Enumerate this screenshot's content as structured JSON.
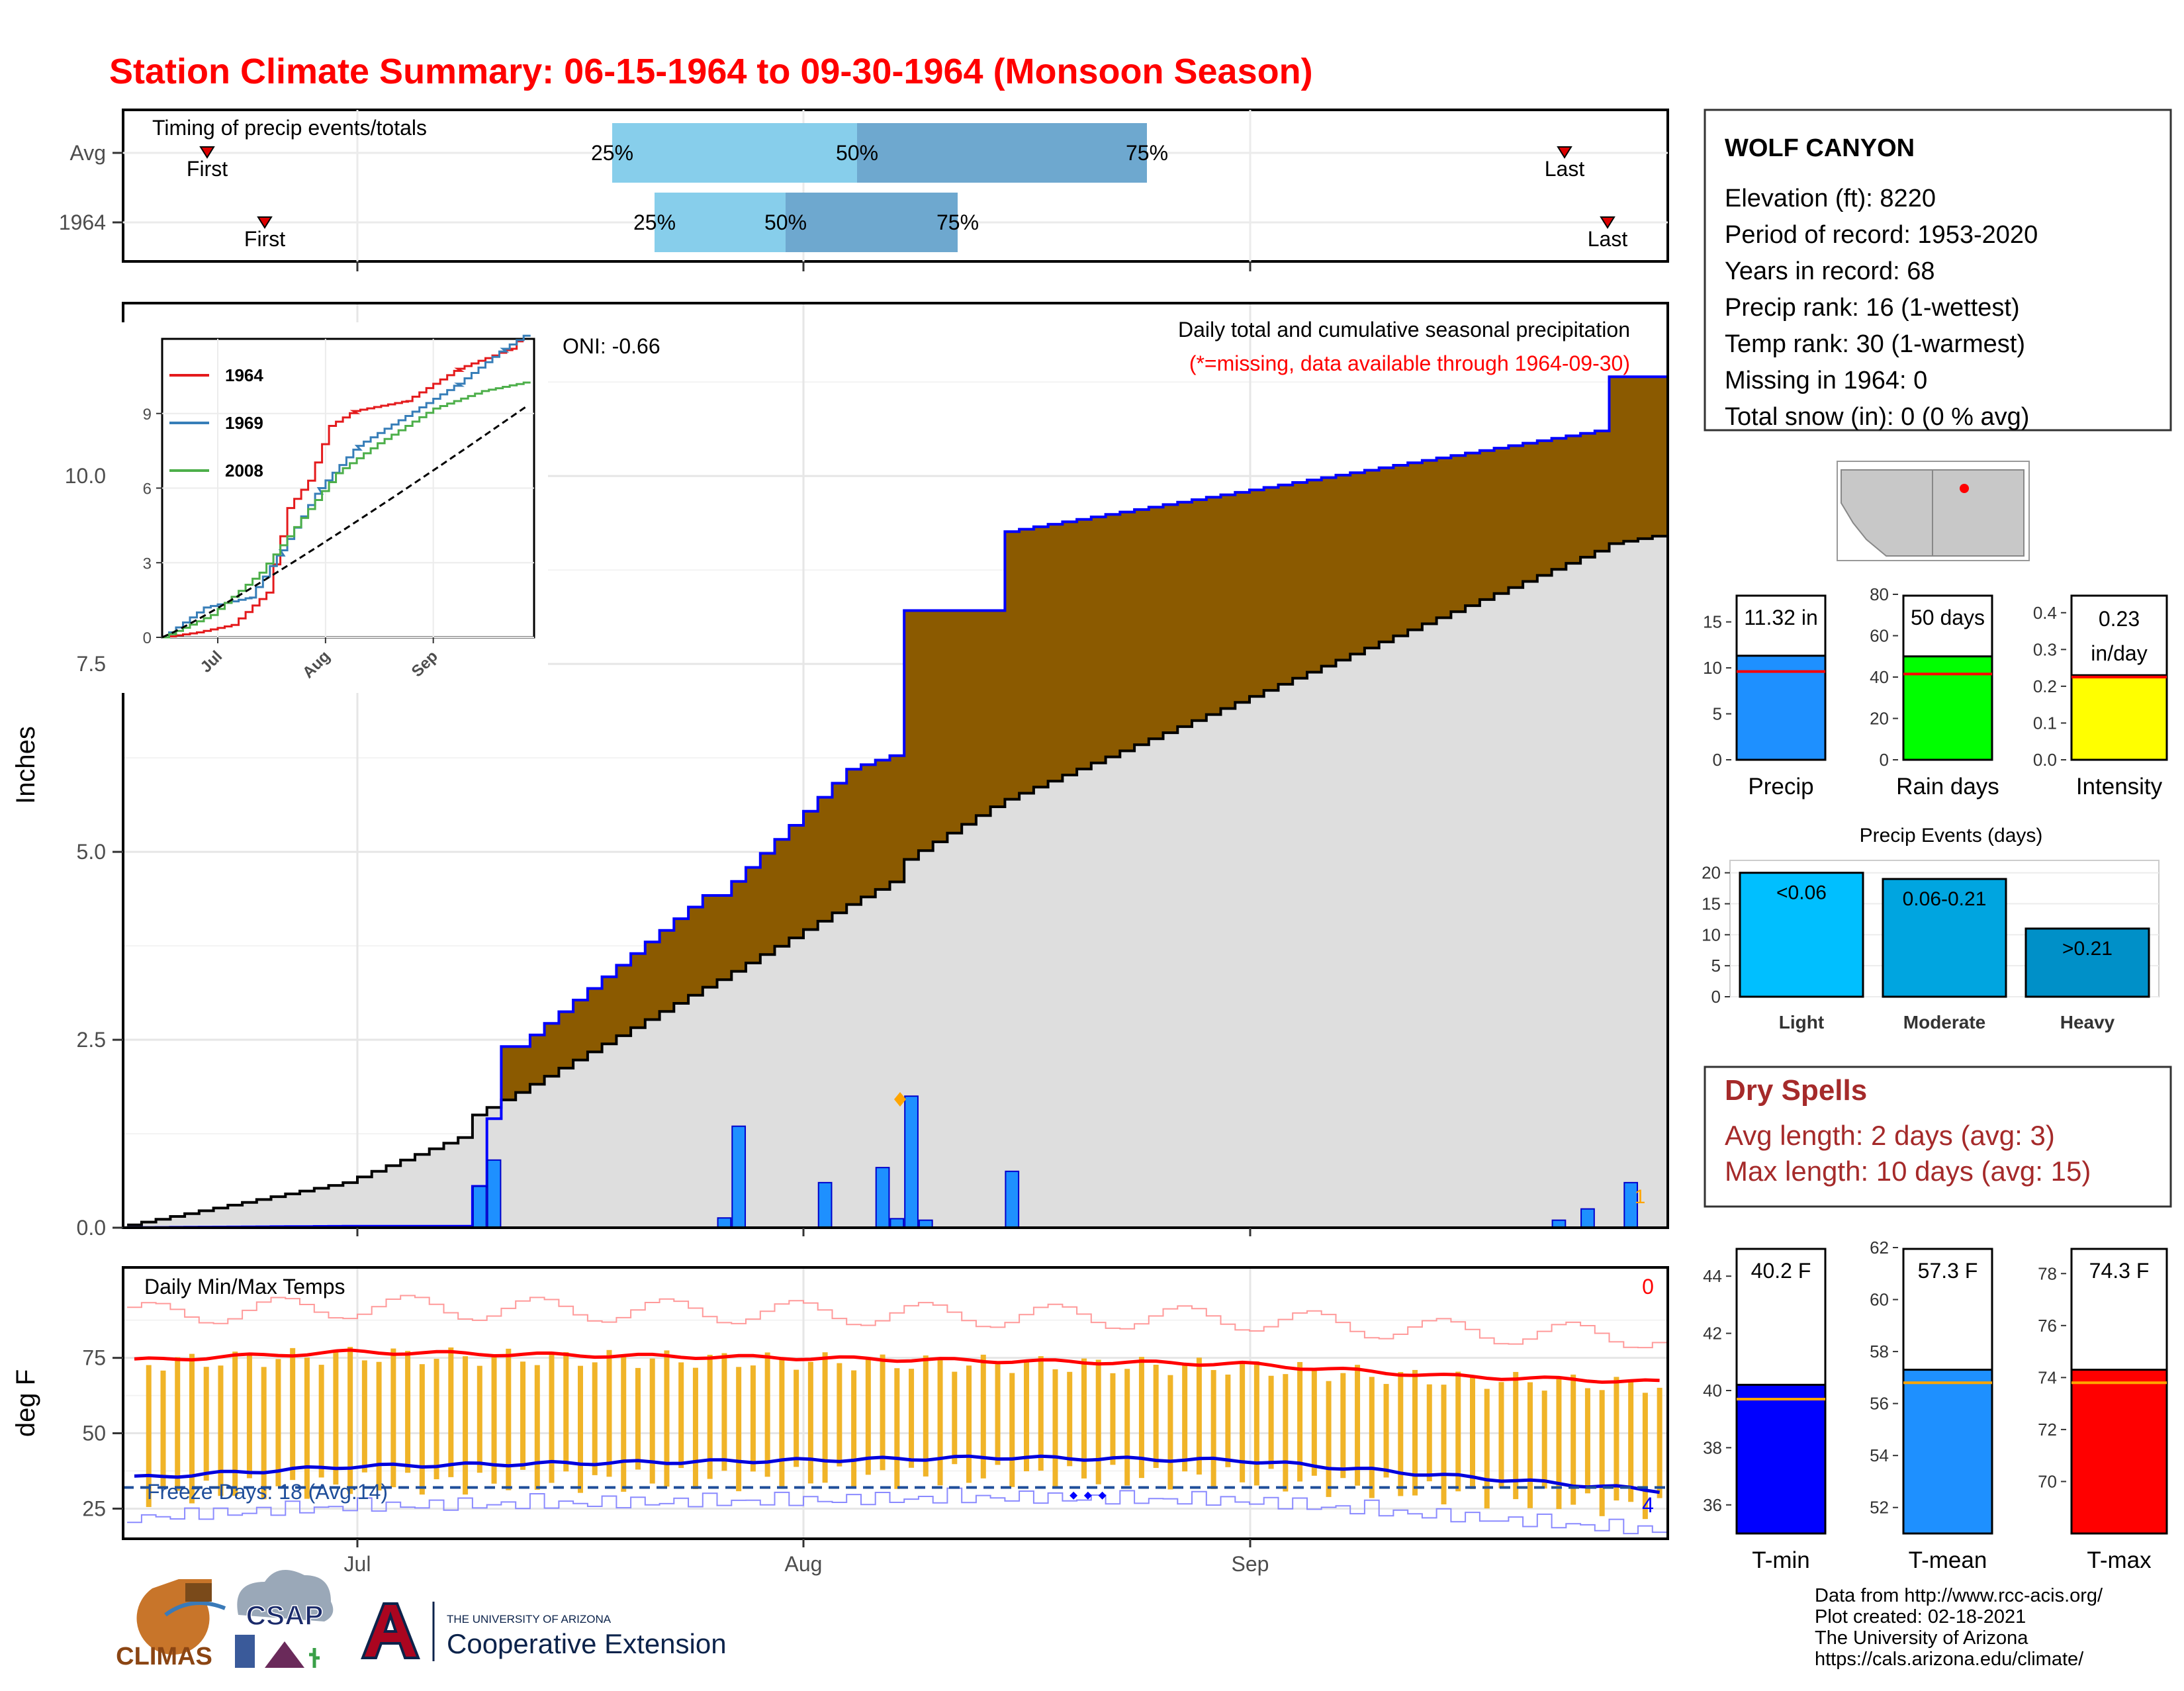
{
  "title": "Station Climate Summary: 06-15-1964 to 09-30-1964 (Monsoon Season)",
  "station": {
    "name": "WOLF CANYON",
    "lines": [
      "Elevation (ft): 8220",
      "Period of record: 1953-2020",
      "Years in record: 68",
      "Precip rank: 16 (1-wettest)",
      "Temp rank: 30 (1-warmest)",
      "Missing in 1964: 0",
      "Total snow (in): 0 (0 % avg)"
    ]
  },
  "timing": {
    "title": "Timing of precip events/totals",
    "rows": [
      "Avg",
      "1964"
    ],
    "first_label": "First",
    "last_label": "Last",
    "pct_labels": [
      "25%",
      "50%",
      "75%"
    ]
  },
  "main": {
    "ylabel": "Inches",
    "annot_title": "Daily total and cumulative seasonal precipitation",
    "annot_missing": "(*=missing, data available through 1964-09-30)",
    "oni": "ONI: -0.66",
    "corner_count": "1",
    "inset_legend": [
      "1964",
      "1969",
      "2008"
    ]
  },
  "temps": {
    "title": "Daily Min/Max Temps",
    "ylabel": "deg F",
    "freeze_label": "Freeze Days: 18 (Avg:14)",
    "top_right_count": "0",
    "bottom_right_count": "4"
  },
  "x_axis": {
    "ticks": [
      "Jul",
      "Aug",
      "Sep"
    ]
  },
  "summary_bars": [
    {
      "label": "Precip",
      "value_label": "11.32 in",
      "value": 11.32,
      "avg": 9.6,
      "ylim": [
        0,
        18
      ],
      "ticks": [
        "0",
        "5",
        "10",
        "15"
      ],
      "color": "#1e90ff"
    },
    {
      "label": "Rain days",
      "value_label": "50 days",
      "value": 50,
      "avg": 41.5,
      "ylim": [
        0,
        80
      ],
      "ticks": [
        "0",
        "20",
        "40",
        "60",
        "80"
      ],
      "color": "#00ff00"
    },
    {
      "label": "Intensity",
      "value_label": "0.23 in/day",
      "value_line1": "0.23",
      "value_line2": "in/day",
      "value": 0.23,
      "avg": 0.225,
      "ylim": [
        0,
        0.45
      ],
      "ticks": [
        "0.0",
        "0.1",
        "0.2",
        "0.3",
        "0.4"
      ],
      "color": "#ffff00"
    }
  ],
  "precip_events": {
    "title": "Precip Events (days)",
    "categories": [
      "Light",
      "Moderate",
      "Heavy"
    ],
    "labels": [
      "<0.06",
      "0.06-0.21",
      ">0.21"
    ],
    "values": [
      20,
      19,
      11
    ],
    "ticks": [
      "0",
      "5",
      "10",
      "15",
      "20"
    ],
    "colors": [
      "#00bfff",
      "#00a5e0",
      "#0090c8"
    ]
  },
  "dry_spells": {
    "title": "Dry Spells",
    "avg_line": "Avg length: 2 days (avg: 3)",
    "max_line": "Max length: 10 days (avg: 15)"
  },
  "temp_bars": [
    {
      "label": "T-min",
      "value_label": "40.2 F",
      "value": 40.2,
      "avg": 39.7,
      "ylim": [
        35,
        45
      ],
      "ticks": [
        "36",
        "38",
        "40",
        "42",
        "44"
      ],
      "color": "#0000ff"
    },
    {
      "label": "T-mean",
      "value_label": "57.3 F",
      "value": 57.3,
      "avg": 56.8,
      "ylim": [
        51,
        62
      ],
      "ticks": [
        "52",
        "54",
        "56",
        "58",
        "60",
        "62"
      ],
      "color": "#1e90ff"
    },
    {
      "label": "T-max",
      "value_label": "74.3 F",
      "value": 74.3,
      "avg": 73.8,
      "ylim": [
        68,
        79
      ],
      "ticks": [
        "70",
        "72",
        "74",
        "76",
        "78"
      ],
      "color": "#ff0000"
    }
  ],
  "credits": [
    "Data from http://www.rcc-acis.org/",
    "Plot created: 02-18-2021",
    "The University of Arizona",
    "https://cals.arizona.edu/climate/"
  ],
  "logos": {
    "climas": "CLIMAS",
    "csap": "CSAP",
    "ua_small": "THE UNIVERSITY OF ARIZONA",
    "ua_big": "Cooperative Extension"
  },
  "chart_data": [
    {
      "type": "area",
      "title": "Daily total and cumulative seasonal precipitation",
      "ylabel": "Inches",
      "ylim": [
        0,
        12.3
      ],
      "x": [
        "06-15",
        "07-01",
        "07-09",
        "07-10",
        "07-11",
        "07-12",
        "07-13",
        "07-26",
        "07-27",
        "08-05",
        "08-08",
        "08-09",
        "08-15",
        "08-16",
        "09-26",
        "09-27",
        "09-30"
      ],
      "series": [
        {
          "name": "1964",
          "values": [
            0,
            0.02,
            0.02,
            0.55,
            1.45,
            2.41,
            2.41,
            4.42,
            4.42,
            6.1,
            6.28,
            8.21,
            8.21,
            9.26,
            10.6,
            11.32,
            11.32
          ]
        },
        {
          "values": [
            0,
            0.6,
            1.2,
            1.5,
            1.6,
            1.7,
            1.8,
            3.2,
            3.3,
            4.3,
            4.6,
            4.9,
            5.6,
            5.7,
            9.0,
            9.1,
            9.2
          ]
        }
      ],
      "daily": {
        "x": [
          "07-10",
          "07-11",
          "07-27",
          "07-28",
          "08-03",
          "08-07",
          "08-08",
          "08-09",
          "08-10",
          "08-16",
          "09-23",
          "09-25",
          "09-28"
        ],
        "values": [
          0.55,
          0.9,
          0.13,
          1.35,
          0.6,
          0.8,
          0.12,
          1.75,
          0.1,
          0.75,
          0.1,
          0.25,
          0.6
        ]
      }
    },
    {
      "type": "line",
      "title": "Daily Min/Max Temps",
      "ylabel": "deg F",
      "ylim": [
        15,
        105
      ],
      "x": [
        "06-15",
        "07-01",
        "07-15",
        "08-01",
        "08-15",
        "09-01",
        "09-15",
        "09-30"
      ],
      "series": [
        {
          "values": [
            74,
            77,
            76,
            75,
            74,
            73,
            69,
            67
          ]
        },
        {
          "values": [
            35,
            39,
            40,
            41,
            42,
            41,
            36,
            31
          ]
        }
      ],
      "freeze_line": 32
    },
    {
      "type": "line",
      "ylim": [
        0,
        12
      ],
      "y_ticks": [
        0,
        3,
        6,
        9
      ],
      "series": [
        {
          "name": "1964",
          "color": "#e41a1c"
        },
        {
          "name": "1969",
          "color": "#377eb8"
        },
        {
          "name": "2008",
          "color": "#4daf4a"
        }
      ]
    }
  ]
}
